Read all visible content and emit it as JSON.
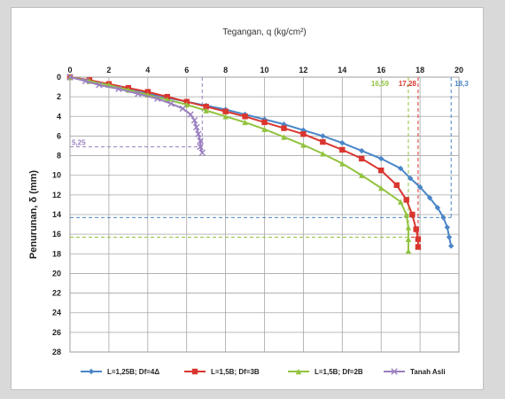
{
  "chart_data": {
    "type": "line",
    "title": "",
    "xlabel": "Tegangan, q (kg/cm²)",
    "ylabel": "Penurunan, δ (mm)",
    "x_axis_position": "top",
    "y_inverted": true,
    "xlim": [
      0,
      20
    ],
    "ylim": [
      0,
      28
    ],
    "xticks": [
      0,
      2,
      4,
      6,
      8,
      10,
      12,
      14,
      16,
      18,
      20
    ],
    "yticks": [
      0,
      2,
      4,
      6,
      8,
      10,
      12,
      14,
      16,
      18,
      20,
      22,
      24,
      26,
      28
    ],
    "grid": true,
    "legend_position": "bottom",
    "series": [
      {
        "name": "L=1,25B; Df=4Δ",
        "color": "#4a86c8",
        "marker": "diamond",
        "points": [
          [
            0,
            0
          ],
          [
            1,
            0.4
          ],
          [
            2,
            0.8
          ],
          [
            3,
            1.2
          ],
          [
            4,
            1.7
          ],
          [
            5,
            2.1
          ],
          [
            6,
            2.5
          ],
          [
            7,
            2.9
          ],
          [
            8,
            3.3
          ],
          [
            9,
            3.8
          ],
          [
            10,
            4.3
          ],
          [
            11,
            4.8
          ],
          [
            12,
            5.4
          ],
          [
            13,
            6.0
          ],
          [
            14,
            6.7
          ],
          [
            15,
            7.5
          ],
          [
            16,
            8.3
          ],
          [
            17,
            9.3
          ],
          [
            17.5,
            10.3
          ],
          [
            18,
            11.2
          ],
          [
            18.5,
            12.3
          ],
          [
            18.9,
            13.3
          ],
          [
            19.2,
            14.3
          ],
          [
            19.4,
            15.3
          ],
          [
            19.5,
            16.3
          ],
          [
            19.6,
            17.2
          ]
        ]
      },
      {
        "name": "L=1,5B; Df=3B",
        "color": "#d9362f",
        "marker": "square",
        "points": [
          [
            0,
            0
          ],
          [
            1,
            0.3
          ],
          [
            2,
            0.7
          ],
          [
            3,
            1.1
          ],
          [
            4,
            1.5
          ],
          [
            5,
            2.0
          ],
          [
            6,
            2.5
          ],
          [
            7,
            3.0
          ],
          [
            8,
            3.5
          ],
          [
            9,
            4.0
          ],
          [
            10,
            4.6
          ],
          [
            11,
            5.2
          ],
          [
            12,
            5.8
          ],
          [
            13,
            6.6
          ],
          [
            14,
            7.4
          ],
          [
            15,
            8.3
          ],
          [
            16,
            9.5
          ],
          [
            16.8,
            11.0
          ],
          [
            17.3,
            12.5
          ],
          [
            17.6,
            14.0
          ],
          [
            17.8,
            15.5
          ],
          [
            17.9,
            16.5
          ],
          [
            17.9,
            17.3
          ]
        ]
      },
      {
        "name": "L=1,5B; Df=2B",
        "color": "#92c33f",
        "marker": "triangle",
        "points": [
          [
            0,
            0
          ],
          [
            1,
            0.4
          ],
          [
            2,
            0.8
          ],
          [
            3,
            1.3
          ],
          [
            4,
            1.8
          ],
          [
            5,
            2.3
          ],
          [
            6,
            2.8
          ],
          [
            7,
            3.4
          ],
          [
            8,
            4.0
          ],
          [
            9,
            4.6
          ],
          [
            10,
            5.3
          ],
          [
            11,
            6.1
          ],
          [
            12,
            6.9
          ],
          [
            13,
            7.8
          ],
          [
            14,
            8.8
          ],
          [
            15,
            10.0
          ],
          [
            16,
            11.3
          ],
          [
            17,
            12.7
          ],
          [
            17.3,
            14.0
          ],
          [
            17.4,
            15.3
          ],
          [
            17.4,
            16.5
          ],
          [
            17.4,
            17.7
          ]
        ]
      },
      {
        "name": "Tanah Asli",
        "color": "#9a7fbf",
        "marker": "x",
        "points": [
          [
            0,
            0
          ],
          [
            0.8,
            0.4
          ],
          [
            1.5,
            0.8
          ],
          [
            2.5,
            1.2
          ],
          [
            3.5,
            1.7
          ],
          [
            4.5,
            2.2
          ],
          [
            5.2,
            2.7
          ],
          [
            5.8,
            3.2
          ],
          [
            6.2,
            3.8
          ],
          [
            6.4,
            4.4
          ],
          [
            6.5,
            5.1
          ],
          [
            6.6,
            5.8
          ],
          [
            6.7,
            6.5
          ],
          [
            6.7,
            7.1
          ],
          [
            6.8,
            7.7
          ]
        ]
      }
    ],
    "annotations": [
      {
        "text": "5,25",
        "color": "#9a7fbf",
        "series": "Tanah Asli",
        "x": 6.8,
        "y": 7.1
      },
      {
        "text": "18,3",
        "color": "#4a86c8",
        "series": "L=1,25B; Df=4Δ",
        "x": 19.6,
        "y": 14.3
      },
      {
        "text": "17,28",
        "color": "#d9362f",
        "series": "L=1,5B; Df=3B",
        "x": 17.9,
        "y": 16.3
      },
      {
        "text": "16,59",
        "color": "#92c33f",
        "series": "L=1,5B; Df=2B",
        "x": 17.4,
        "y": 16.3
      }
    ],
    "legend_labels": [
      "L=1,25B; Df=4Δ",
      "L=1,5B; Df=3B",
      "L=1,5B; Df=2B",
      "Tanah Asli"
    ]
  }
}
